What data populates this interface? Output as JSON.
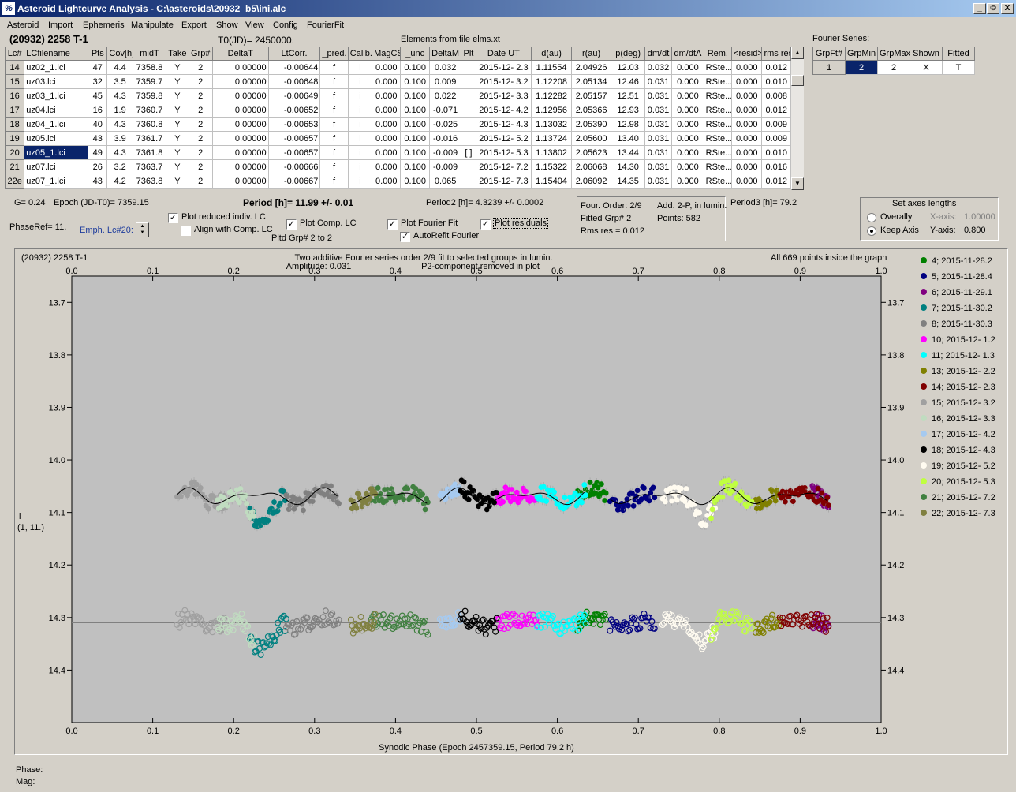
{
  "window": {
    "title": "Asteroid Lightcurve Analysis - C:\\asteroids\\20932_b5\\ini.alc",
    "icon": "app-icon",
    "min_label": "_",
    "restore_label": "©",
    "close_label": "X"
  },
  "menu": [
    "Asteroid",
    "Import",
    "Ephemeris",
    "Manipulate",
    "Export",
    "Show",
    "View",
    "Config",
    "FourierFit"
  ],
  "header": {
    "asteroid": "(20932) 2258 T-1",
    "t0": "T0(JD)= 2450000.",
    "elements": "Elements from file elms.xt"
  },
  "table": {
    "columns": [
      "Lc#",
      "LCfilename",
      "Pts",
      "Cov[h]",
      "midT",
      "Take",
      "Grp#",
      "DeltaT",
      "LtCorr.",
      "_pred.",
      "Calib.",
      "MagCS",
      "_unc",
      "DeltaM",
      "Plt",
      "Date UT",
      "d(au)",
      "r(au)",
      "p(deg)",
      "dm/dt",
      "dm/dtA",
      "Rem.",
      "<resid>",
      "rms res"
    ],
    "rows": [
      [
        "14",
        "uz02_1.lci",
        "47",
        "4.4",
        "7358.8",
        "Y",
        "2",
        "0.00000",
        "-0.00644",
        "f",
        "i",
        "0.000",
        "0.100",
        "0.032",
        "",
        "2015-12- 2.3",
        "1.11554",
        "2.04926",
        "12.03",
        "0.032",
        "0.000",
        "RSte...",
        "0.000",
        "0.012"
      ],
      [
        "15",
        "uz03.lci",
        "32",
        "3.5",
        "7359.7",
        "Y",
        "2",
        "0.00000",
        "-0.00648",
        "f",
        "i",
        "0.000",
        "0.100",
        "0.009",
        "",
        "2015-12- 3.2",
        "1.12208",
        "2.05134",
        "12.46",
        "0.031",
        "0.000",
        "RSte...",
        "0.000",
        "0.010"
      ],
      [
        "16",
        "uz03_1.lci",
        "45",
        "4.3",
        "7359.8",
        "Y",
        "2",
        "0.00000",
        "-0.00649",
        "f",
        "i",
        "0.000",
        "0.100",
        "0.022",
        "",
        "2015-12- 3.3",
        "1.12282",
        "2.05157",
        "12.51",
        "0.031",
        "0.000",
        "RSte...",
        "0.000",
        "0.008"
      ],
      [
        "17",
        "uz04.lci",
        "16",
        "1.9",
        "7360.7",
        "Y",
        "2",
        "0.00000",
        "-0.00652",
        "f",
        "i",
        "0.000",
        "0.100",
        "-0.071",
        "",
        "2015-12- 4.2",
        "1.12956",
        "2.05366",
        "12.93",
        "0.031",
        "0.000",
        "RSte...",
        "0.000",
        "0.012"
      ],
      [
        "18",
        "uz04_1.lci",
        "40",
        "4.3",
        "7360.8",
        "Y",
        "2",
        "0.00000",
        "-0.00653",
        "f",
        "i",
        "0.000",
        "0.100",
        "-0.025",
        "",
        "2015-12- 4.3",
        "1.13032",
        "2.05390",
        "12.98",
        "0.031",
        "0.000",
        "RSte...",
        "0.000",
        "0.009"
      ],
      [
        "19",
        "uz05.lci",
        "43",
        "3.9",
        "7361.7",
        "Y",
        "2",
        "0.00000",
        "-0.00657",
        "f",
        "i",
        "0.000",
        "0.100",
        "-0.016",
        "",
        "2015-12- 5.2",
        "1.13724",
        "2.05600",
        "13.40",
        "0.031",
        "0.000",
        "RSte...",
        "0.000",
        "0.009"
      ],
      [
        "20",
        "uz05_1.lci",
        "49",
        "4.3",
        "7361.8",
        "Y",
        "2",
        "0.00000",
        "-0.00657",
        "f",
        "i",
        "0.000",
        "0.100",
        "-0.009",
        "[ ]",
        "2015-12- 5.3",
        "1.13802",
        "2.05623",
        "13.44",
        "0.031",
        "0.000",
        "RSte...",
        "0.000",
        "0.010"
      ],
      [
        "21",
        "uz07.lci",
        "26",
        "3.2",
        "7363.7",
        "Y",
        "2",
        "0.00000",
        "-0.00666",
        "f",
        "i",
        "0.000",
        "0.100",
        "-0.009",
        "",
        "2015-12- 7.2",
        "1.15322",
        "2.06068",
        "14.30",
        "0.031",
        "0.000",
        "RSte...",
        "0.000",
        "0.016"
      ],
      [
        "22e",
        "uz07_1.lci",
        "43",
        "4.2",
        "7363.8",
        "Y",
        "2",
        "0.00000",
        "-0.00667",
        "f",
        "i",
        "0.000",
        "0.100",
        "0.065",
        "",
        "2015-12- 7.3",
        "1.15404",
        "2.06092",
        "14.35",
        "0.031",
        "0.000",
        "RSte...",
        "0.000",
        "0.012"
      ]
    ]
  },
  "fourier": {
    "label": "Fourier Series:",
    "columns": [
      "GrpFt#",
      "GrpMin",
      "GrpMax",
      "Shown",
      "Fitted"
    ],
    "row": [
      "1",
      "2",
      "2",
      "X",
      "T"
    ]
  },
  "info": {
    "g": "G= 0.24",
    "epoch": "Epoch (JD-T0)= 7359.15",
    "period": "Period [h]= 11.99 +/- 0.01",
    "period2": "Period2 [h]= 4.3239 +/- 0.0002",
    "period3": "Period3 [h]= 79.2",
    "phaseref": "PhaseRef= 11.",
    "emph": "Emph. Lc#20:",
    "chk_reduced": "Plot reduced indiv. LC",
    "chk_align": "Align with Comp. LC",
    "chk_comp": "Plot Comp. LC",
    "pltd": "Pltd Grp#  2  to   2",
    "chk_fourier": "Plot Fourier Fit",
    "chk_autorefit": "AutoRefit Fourier",
    "chk_resid": "Plot residuals",
    "four_order": "Four. Order:  2/9",
    "add2p": "Add. 2-P, in lumin.",
    "fitted_grp": "Fitted Grp# 2",
    "points": "Points: 582",
    "rms": "Rms res     = 0.012",
    "axes_title": "Set axes lengths",
    "overally": "Overally",
    "keepaxis": "Keep Axis",
    "xaxis_lbl": "X-axis:",
    "xaxis_val": "1.00000",
    "yaxis_lbl": "Y-axis:",
    "yaxis_val": "0.800"
  },
  "plot": {
    "object": "(20932) 2258 T-1",
    "title1": "Two additive Fourier series order 2/9 fit to selected groups in lumin.",
    "amplitude": "Amplitude: 0.031",
    "p2note": "P2-component removed in plot",
    "inside": "All 669 points inside the graph",
    "ylabel1": "i",
    "ylabel2": "(1, 11.)",
    "xlabel": "Synodic Phase (Epoch 2457359.15, Period 79.2 h)"
  },
  "chart_data": {
    "type": "scatter",
    "xlim": [
      0,
      1
    ],
    "ylim": [
      14.5,
      13.65
    ],
    "xticks": [
      "0.0",
      "0.1",
      "0.2",
      "0.3",
      "0.4",
      "0.5",
      "0.6",
      "0.7",
      "0.8",
      "0.9",
      "1.0"
    ],
    "yticks": [
      "13.7",
      "13.8",
      "13.9",
      "14.0",
      "14.1",
      "14.2",
      "14.3",
      "14.4"
    ],
    "upper_level": 14.1,
    "lower_level": 14.31,
    "series": [
      {
        "name": "4; 2015-11-28.2",
        "color": "#008000",
        "x": [
          0.625,
          0.66
        ]
      },
      {
        "name": "5; 2015-11-28.4",
        "color": "#000080",
        "x": [
          0.665,
          0.72
        ]
      },
      {
        "name": "6; 2015-11-29.1",
        "color": "#800080",
        "x": [
          0.915,
          0.935
        ]
      },
      {
        "name": "7; 2015-11-30.2",
        "color": "#008080",
        "x": [
          0.22,
          0.265
        ]
      },
      {
        "name": "8; 2015-11-30.3",
        "color": "#808080",
        "x": [
          0.265,
          0.33
        ]
      },
      {
        "name": "10; 2015-12- 1.2",
        "color": "#ff00ff",
        "x": [
          0.525,
          0.575
        ]
      },
      {
        "name": "11; 2015-12- 1.3",
        "color": "#00ffff",
        "x": [
          0.575,
          0.635
        ]
      },
      {
        "name": "13; 2015-12- 2.2",
        "color": "#808000",
        "x": [
          0.845,
          0.875
        ]
      },
      {
        "name": "14; 2015-12- 2.3",
        "color": "#800000",
        "x": [
          0.875,
          0.935
        ]
      },
      {
        "name": "15; 2015-12- 3.2",
        "color": "#a0a0a0",
        "x": [
          0.13,
          0.19
        ]
      },
      {
        "name": "16; 2015-12- 3.3",
        "color": "#c0dcc0",
        "x": [
          0.18,
          0.225
        ]
      },
      {
        "name": "17; 2015-12- 4.2",
        "color": "#a6caf0",
        "x": [
          0.455,
          0.48
        ]
      },
      {
        "name": "18; 2015-12- 4.3",
        "color": "#000000",
        "x": [
          0.48,
          0.525
        ]
      },
      {
        "name": "19; 2015-12- 5.2",
        "color": "#fffbf0",
        "x": [
          0.73,
          0.795
        ]
      },
      {
        "name": "20; 2015-12- 5.3",
        "color": "#c0ff40",
        "x": [
          0.79,
          0.84
        ]
      },
      {
        "name": "21; 2015-12- 7.2",
        "color": "#408040",
        "x": [
          0.37,
          0.44
        ]
      },
      {
        "name": "22; 2015-12- 7.3",
        "color": "#808040",
        "x": [
          0.345,
          0.375
        ]
      }
    ]
  },
  "status": {
    "phase": "Phase:",
    "mag": "Mag:"
  }
}
